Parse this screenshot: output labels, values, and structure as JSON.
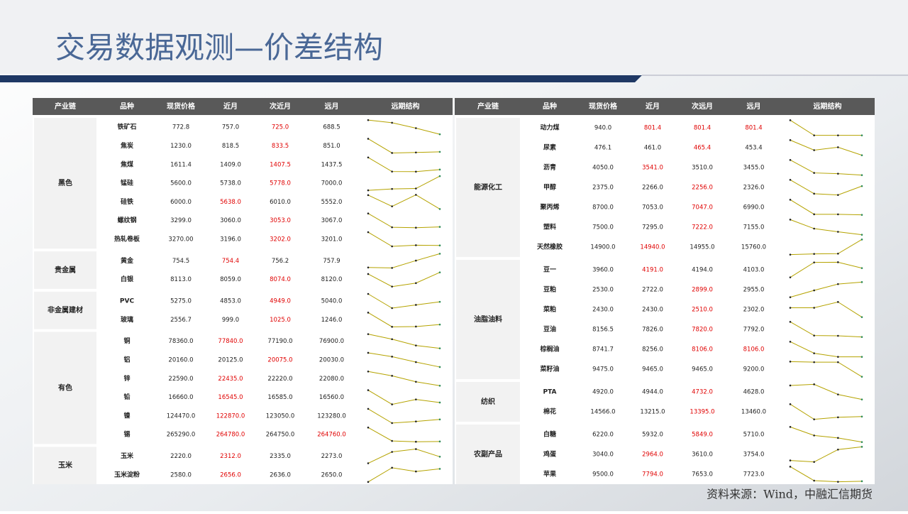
{
  "title": "交易数据观测—价差结构",
  "source": "资料来源：Wind，中融汇信期货",
  "tables": [
    {
      "columns": [
        "产业链",
        "品种",
        "现货价格",
        "近月",
        "次近月",
        "远月",
        "远期结构"
      ],
      "groups": [
        {
          "name": "黑色",
          "rows": [
            {
              "name": "铁矿石",
              "values": [
                "772.8",
                "757.0",
                "725.0",
                "688.5"
              ],
              "red": [
                2
              ]
            },
            {
              "name": "焦炭",
              "values": [
                "1230.0",
                "818.5",
                "833.5",
                "851.0"
              ],
              "red": [
                2
              ]
            },
            {
              "name": "焦煤",
              "values": [
                "1611.4",
                "1409.0",
                "1407.5",
                "1437.5"
              ],
              "red": [
                2
              ]
            },
            {
              "name": "锰硅",
              "values": [
                "5600.0",
                "5738.0",
                "5778.0",
                "7000.0"
              ],
              "red": [
                2
              ]
            },
            {
              "name": "硅铁",
              "values": [
                "6000.0",
                "5638.0",
                "6010.0",
                "5552.0"
              ],
              "red": [
                1
              ]
            },
            {
              "name": "螺纹钢",
              "values": [
                "3299.0",
                "3060.0",
                "3053.0",
                "3067.0"
              ],
              "red": [
                2
              ]
            },
            {
              "name": "热轧卷板",
              "values": [
                "3270.00",
                "3196.0",
                "3202.0",
                "3201.0"
              ],
              "red": [
                2
              ]
            }
          ]
        },
        {
          "name": "贵金属",
          "rows": [
            {
              "name": "黄金",
              "values": [
                "754.5",
                "754.4",
                "756.2",
                "757.9"
              ],
              "red": [
                1
              ]
            },
            {
              "name": "白银",
              "values": [
                "8113.0",
                "8059.0",
                "8074.0",
                "8120.0"
              ],
              "red": [
                2
              ]
            }
          ]
        },
        {
          "name": "非金属建材",
          "rows": [
            {
              "name": "PVC",
              "values": [
                "5275.0",
                "4853.0",
                "4949.0",
                "5040.0"
              ],
              "red": [
                2
              ]
            },
            {
              "name": "玻璃",
              "values": [
                "2556.7",
                "999.0",
                "1025.0",
                "1246.0"
              ],
              "red": [
                2
              ]
            }
          ]
        },
        {
          "name": "有色",
          "rows": [
            {
              "name": "铜",
              "values": [
                "78360.0",
                "77840.0",
                "77190.0",
                "76900.0"
              ],
              "red": [
                1
              ]
            },
            {
              "name": "铝",
              "values": [
                "20160.0",
                "20125.0",
                "20075.0",
                "20030.0"
              ],
              "red": [
                2
              ]
            },
            {
              "name": "锌",
              "values": [
                "22590.0",
                "22435.0",
                "22220.0",
                "22080.0"
              ],
              "red": [
                1
              ]
            },
            {
              "name": "铅",
              "values": [
                "16660.0",
                "16545.0",
                "16585.0",
                "16560.0"
              ],
              "red": [
                1
              ]
            },
            {
              "name": "镍",
              "values": [
                "124470.0",
                "122870.0",
                "123050.0",
                "123280.0"
              ],
              "red": [
                1
              ]
            },
            {
              "name": "锡",
              "values": [
                "265290.0",
                "264780.0",
                "264750.0",
                "264760.0"
              ],
              "red": [
                1,
                3
              ]
            }
          ]
        },
        {
          "name": "玉米",
          "rows": [
            {
              "name": "玉米",
              "values": [
                "2220.0",
                "2312.0",
                "2335.0",
                "2273.0"
              ],
              "red": [
                1
              ]
            },
            {
              "name": "玉米淀粉",
              "values": [
                "2580.0",
                "2656.0",
                "2636.0",
                "2650.0"
              ],
              "red": [
                1
              ]
            }
          ]
        }
      ]
    },
    {
      "columns": [
        "产业链",
        "品种",
        "现货价格",
        "近月",
        "次远月",
        "远月",
        "远期结构"
      ],
      "groups": [
        {
          "name": "能源化工",
          "rows": [
            {
              "name": "动力煤",
              "values": [
                "940.0",
                "801.4",
                "801.4",
                "801.4"
              ],
              "red": [
                1,
                2,
                3
              ]
            },
            {
              "name": "尿素",
              "values": [
                "476.1",
                "461.0",
                "465.4",
                "453.4"
              ],
              "red": [
                2
              ]
            },
            {
              "name": "沥青",
              "values": [
                "4050.0",
                "3541.0",
                "3510.0",
                "3455.0"
              ],
              "red": [
                1
              ]
            },
            {
              "name": "甲醇",
              "values": [
                "2375.0",
                "2266.0",
                "2256.0",
                "2326.0"
              ],
              "red": [
                2
              ]
            },
            {
              "name": "聚丙烯",
              "values": [
                "8700.0",
                "7053.0",
                "7047.0",
                "6990.0"
              ],
              "red": [
                2
              ]
            },
            {
              "name": "塑料",
              "values": [
                "7500.0",
                "7295.0",
                "7222.0",
                "7155.0"
              ],
              "red": [
                2
              ]
            },
            {
              "name": "天然橡胶",
              "values": [
                "14900.0",
                "14940.0",
                "14955.0",
                "15760.0"
              ],
              "red": [
                1
              ]
            }
          ]
        },
        {
          "name": "油脂油料",
          "rows": [
            {
              "name": "豆一",
              "values": [
                "3960.0",
                "4191.0",
                "4194.0",
                "4103.0"
              ],
              "red": [
                1
              ]
            },
            {
              "name": "豆粕",
              "values": [
                "2530.0",
                "2722.0",
                "2899.0",
                "2955.0"
              ],
              "red": [
                2
              ]
            },
            {
              "name": "菜粕",
              "values": [
                "2430.0",
                "2430.0",
                "2510.0",
                "2302.0"
              ],
              "red": [
                2
              ]
            },
            {
              "name": "豆油",
              "values": [
                "8156.5",
                "7826.0",
                "7820.0",
                "7792.0"
              ],
              "red": [
                2
              ]
            },
            {
              "name": "棕榈油",
              "values": [
                "8741.7",
                "8256.0",
                "8106.0",
                "8106.0"
              ],
              "red": [
                2,
                3
              ]
            },
            {
              "name": "菜籽油",
              "values": [
                "9475.0",
                "9465.0",
                "9465.0",
                "9200.0"
              ],
              "red": []
            }
          ]
        },
        {
          "name": "纺织",
          "rows": [
            {
              "name": "PTA",
              "values": [
                "4920.0",
                "4944.0",
                "4732.0",
                "4628.0"
              ],
              "red": [
                2
              ]
            },
            {
              "name": "棉花",
              "values": [
                "14566.0",
                "13215.0",
                "13395.0",
                "13460.0"
              ],
              "red": [
                2
              ]
            }
          ]
        },
        {
          "name": "农副产品",
          "rows": [
            {
              "name": "白糖",
              "values": [
                "6220.0",
                "5932.0",
                "5849.0",
                "5710.0"
              ],
              "red": [
                2
              ]
            },
            {
              "name": "鸡蛋",
              "values": [
                "3040.0",
                "2964.0",
                "3610.0",
                "3754.0"
              ],
              "red": [
                1
              ]
            },
            {
              "name": "苹果",
              "values": [
                "9500.0",
                "7794.0",
                "7653.0",
                "7723.0"
              ],
              "red": [
                1
              ]
            }
          ]
        }
      ]
    }
  ]
}
